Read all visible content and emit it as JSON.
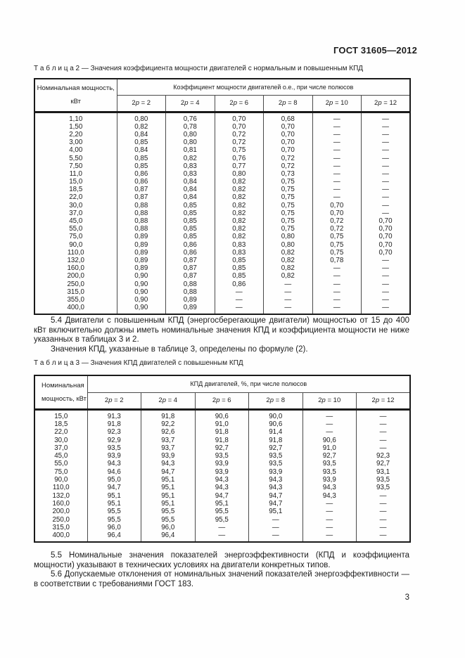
{
  "page": {
    "doc_number": "ГОСТ 31605—2012",
    "page_number": "3"
  },
  "table2": {
    "caption": "Т а б л и ц а  2 — Значения коэффициента мощности двигателей с нормальным и повышенным КПД",
    "col1_header_line1": "Номинальная мощность,",
    "col1_header_line2": "кВт",
    "group_header": "Коэффициент мощности двигателей о.е., при числе полюсов",
    "pole_headers": [
      "2p = 2",
      "2p = 4",
      "2p = 6",
      "2p = 8",
      "2p = 10",
      "2p = 12"
    ],
    "rows": [
      [
        "1,10",
        "0,80",
        "0,76",
        "0,70",
        "0,68",
        "—",
        "—"
      ],
      [
        "1,50",
        "0,82",
        "0,78",
        "0,70",
        "0,70",
        "—",
        "—"
      ],
      [
        "2,20",
        "0,84",
        "0,80",
        "0,72",
        "0,70",
        "—",
        "—"
      ],
      [
        "3,00",
        "0,85",
        "0,80",
        "0,72",
        "0,70",
        "—",
        "—"
      ],
      [
        "4,00",
        "0,84",
        "0,81",
        "0,75",
        "0,70",
        "—",
        "—"
      ],
      [
        "5,50",
        "0,85",
        "0,82",
        "0,76",
        "0,72",
        "—",
        "—"
      ],
      [
        "7,50",
        "0,85",
        "0,83",
        "0,77",
        "0,72",
        "—",
        "—"
      ],
      [
        "11,0",
        "0,86",
        "0,83",
        "0,80",
        "0,73",
        "—",
        "—"
      ],
      [
        "15,0",
        "0,86",
        "0,84",
        "0,82",
        "0,75",
        "—",
        "—"
      ],
      [
        "18,5",
        "0,87",
        "0,84",
        "0,82",
        "0,75",
        "—",
        "—"
      ],
      [
        "22,0",
        "0,87",
        "0,84",
        "0,82",
        "0,75",
        "—",
        "—"
      ],
      [
        "30,0",
        "0,88",
        "0,85",
        "0,82",
        "0,75",
        "0,70",
        "—"
      ],
      [
        "37,0",
        "0,88",
        "0,85",
        "0,82",
        "0,75",
        "0,70",
        "—"
      ],
      [
        "45,0",
        "0,88",
        "0,85",
        "0,82",
        "0,75",
        "0,72",
        "0,70"
      ],
      [
        "55,0",
        "0,88",
        "0,85",
        "0,82",
        "0,75",
        "0,72",
        "0,70"
      ],
      [
        "75,0",
        "0,89",
        "0,85",
        "0,82",
        "0,80",
        "0,75",
        "0,70"
      ],
      [
        "90,0",
        "0,89",
        "0,86",
        "0,83",
        "0,80",
        "0,75",
        "0,70"
      ],
      [
        "110,0",
        "0,89",
        "0,86",
        "0,83",
        "0,82",
        "0,75",
        "0,70"
      ],
      [
        "132,0",
        "0,89",
        "0,87",
        "0,85",
        "0,82",
        "0,78",
        "—"
      ],
      [
        "160,0",
        "0,89",
        "0,87",
        "0,85",
        "0,82",
        "—",
        "—"
      ],
      [
        "200,0",
        "0,90",
        "0,87",
        "0,85",
        "0,82",
        "—",
        "—"
      ],
      [
        "250,0",
        "0,90",
        "0,88",
        "0,86",
        "—",
        "—",
        "—"
      ],
      [
        "315,0",
        "0,90",
        "0,88",
        "—",
        "—",
        "—",
        "—"
      ],
      [
        "355,0",
        "0,90",
        "0,89",
        "—",
        "—",
        "—",
        "—"
      ],
      [
        "400,0",
        "0,90",
        "0,89",
        "—",
        "—",
        "—",
        "—"
      ]
    ]
  },
  "text": {
    "p54": "5.4  Двигатели с повышенным КПД (энергосберегающие двигатели) мощностью от 15 до 400 кВт включительно должны иметь номинальные значения КПД и коэффициента мощности не ниже указанных в таблицах 3 и 2.",
    "p54b": "Значения КПД, указанные в таблице 3, определены по формуле (2).",
    "p55": "5.5  Номинальные значения показателей энергоэффективности (КПД и коэффициента мощности) указывают в технических условиях на двигатели конкретных типов.",
    "p56": "5.6  Допускаемые отклонения от номинальных значений показателей энергоэффективности — в соответствии с требованиями ГОСТ 183."
  },
  "table3": {
    "caption": "Т а б л и ц а  3 — Значения КПД двигателей с повышенным КПД",
    "col1_header_line1": "Номинальная",
    "col1_header_line2": "мощность, кВт",
    "group_header": "КПД двигателей, %, при числе полюсов",
    "pole_headers": [
      "2p = 2",
      "2p = 4",
      "2p = 6",
      "2p = 8",
      "2p = 10",
      "2p = 12"
    ],
    "rows": [
      [
        "15,0",
        "91,3",
        "91,8",
        "90,6",
        "90,0",
        "—",
        "—"
      ],
      [
        "18,5",
        "91,8",
        "92,2",
        "91,0",
        "90,6",
        "—",
        "—"
      ],
      [
        "22,0",
        "92,3",
        "92,6",
        "91,8",
        "91,4",
        "—",
        "—"
      ],
      [
        "30,0",
        "92,9",
        "93,7",
        "91,8",
        "91,8",
        "90,6",
        "—"
      ],
      [
        "37,0",
        "93,5",
        "93,7",
        "92,7",
        "92,7",
        "91,0",
        "—"
      ],
      [
        "45,0",
        "93,9",
        "93,9",
        "93,5",
        "93,5",
        "92,7",
        "92,3"
      ],
      [
        "55,0",
        "94,3",
        "94,3",
        "93,9",
        "93,5",
        "93,5",
        "92,7"
      ],
      [
        "75,0",
        "94,6",
        "94,7",
        "93,9",
        "93,9",
        "93,5",
        "93,1"
      ],
      [
        "90,0",
        "95,0",
        "95,1",
        "94,3",
        "94,3",
        "93,9",
        "93,5"
      ],
      [
        "110,0",
        "94,7",
        "95,1",
        "94,3",
        "94,3",
        "94,3",
        "93,5"
      ],
      [
        "132,0",
        "95,1",
        "95,1",
        "94,7",
        "94,7",
        "94,3",
        "—"
      ],
      [
        "160,0",
        "95,1",
        "95,1",
        "95,1",
        "94,7",
        "—",
        "—"
      ],
      [
        "200,0",
        "95,5",
        "95,5",
        "95,5",
        "95,1",
        "—",
        "—"
      ],
      [
        "250,0",
        "95,5",
        "95,5",
        "95,5",
        "—",
        "—",
        "—"
      ],
      [
        "315,0",
        "96,0",
        "96,0",
        "—",
        "—",
        "—",
        "—"
      ],
      [
        "400,0",
        "96,4",
        "96,4",
        "—",
        "—",
        "—",
        "—"
      ]
    ]
  }
}
